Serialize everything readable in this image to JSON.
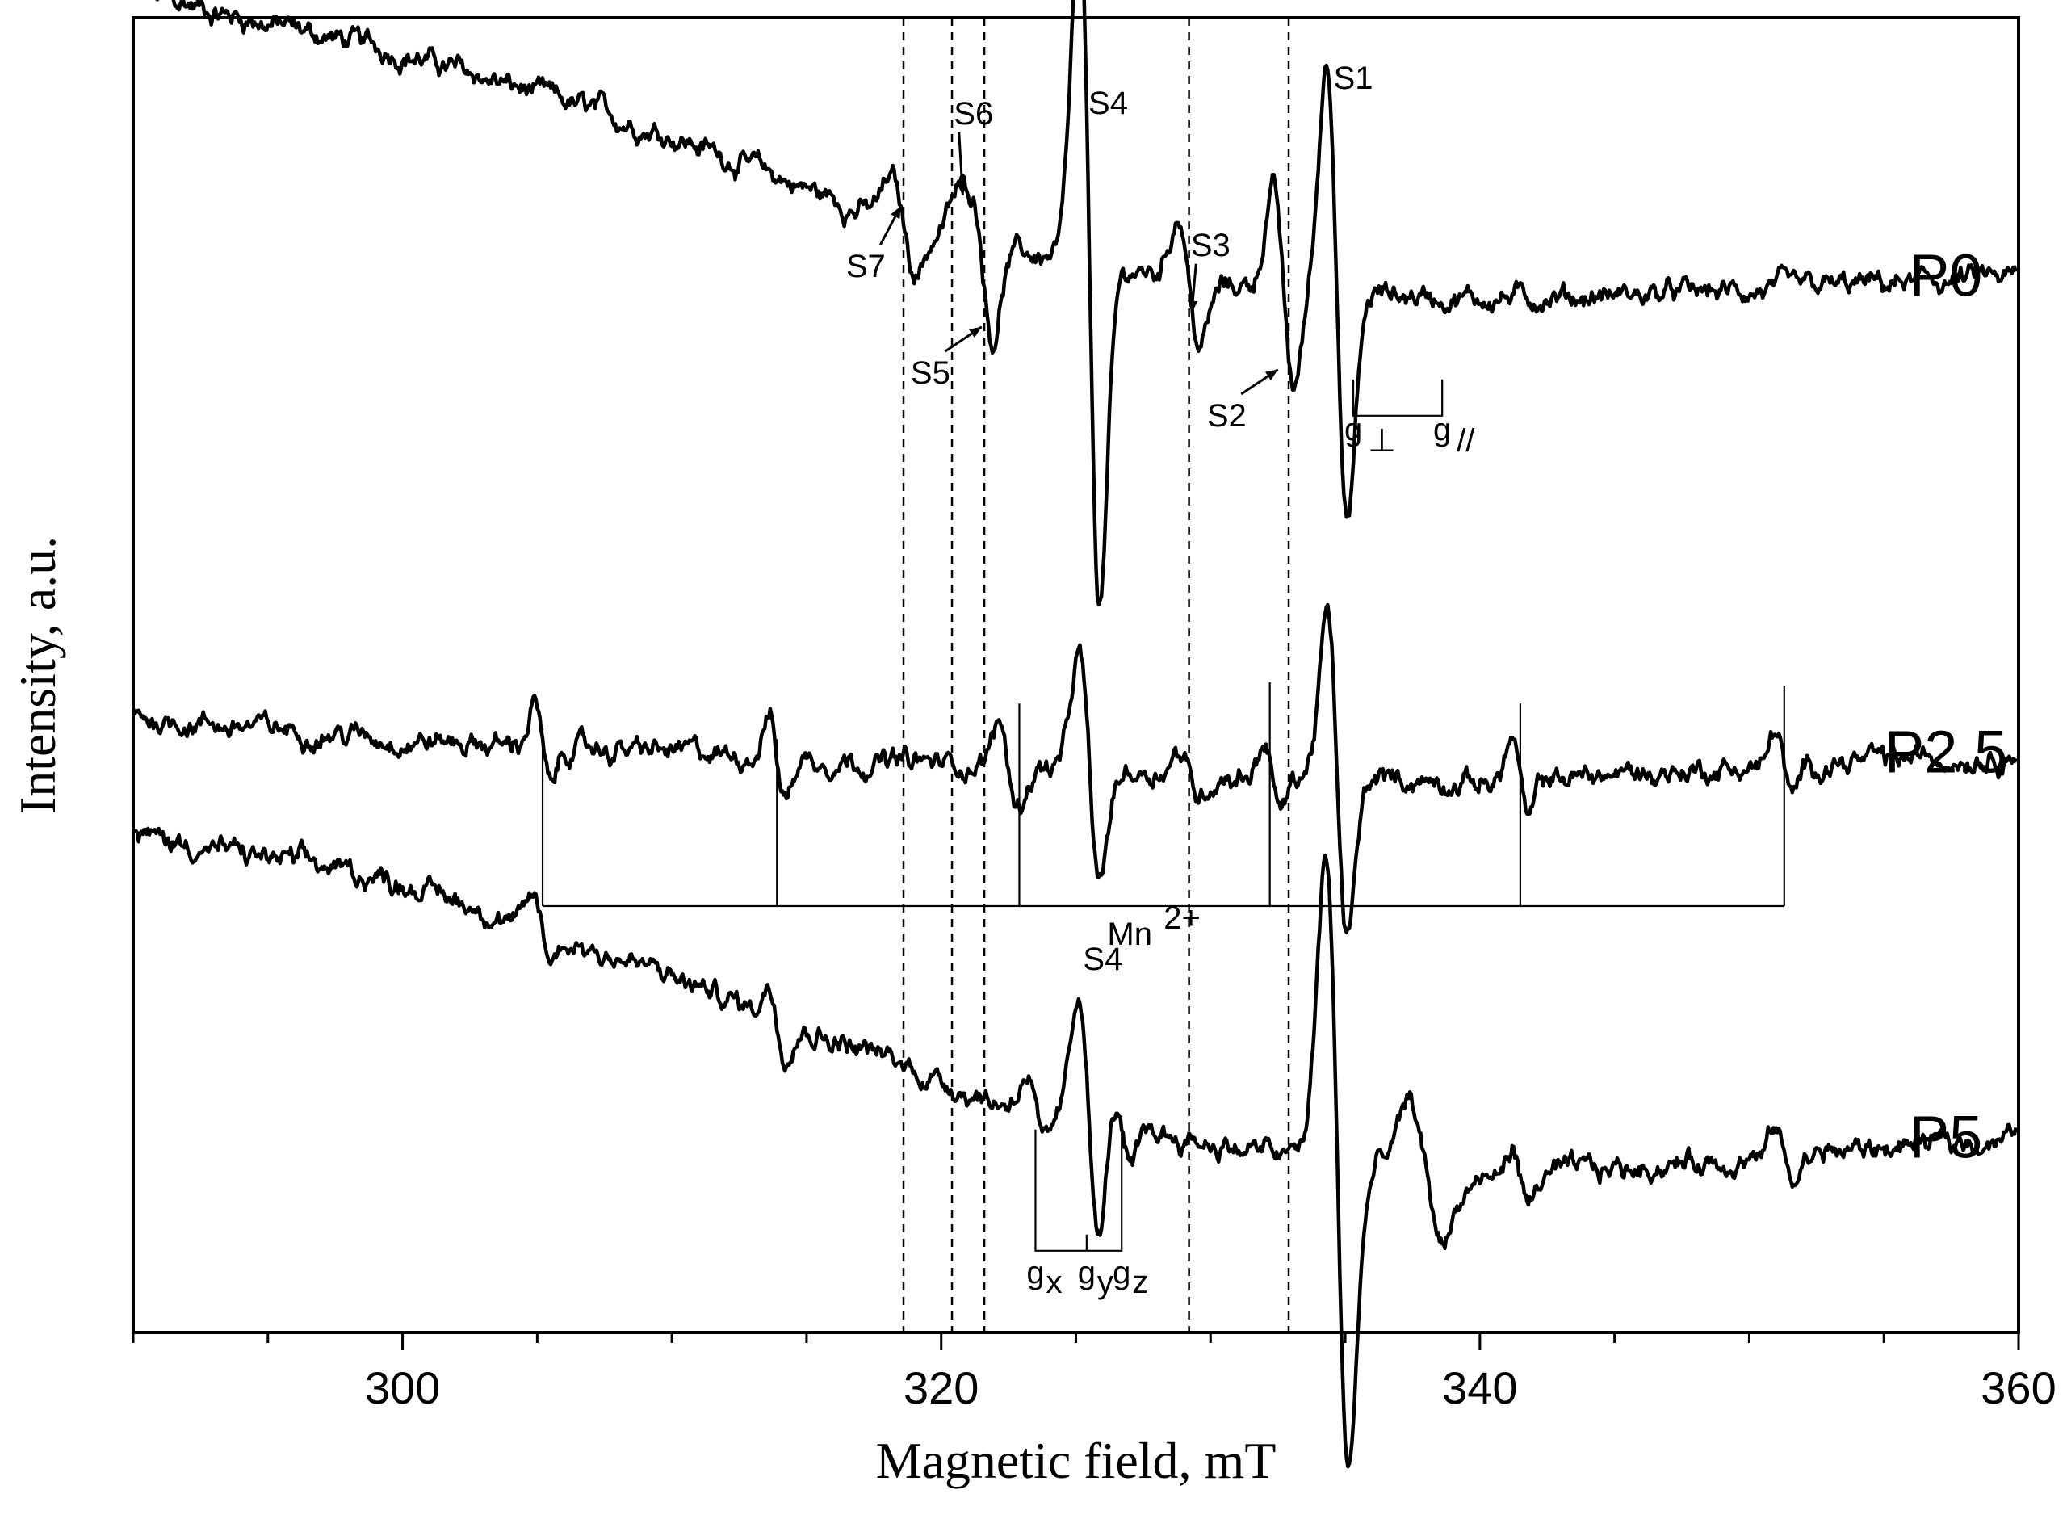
{
  "chart_data": {
    "type": "line",
    "xlabel": "Magnetic field, mT",
    "ylabel": "Intensity, a.u.",
    "xlim": [
      290,
      360
    ],
    "xticks": [
      300,
      320,
      340,
      360
    ],
    "yticks": [],
    "grid": false,
    "series": [
      {
        "name": "P0",
        "label": "P0",
        "offset": 2.0,
        "baseline": [
          [
            290,
            1.22
          ],
          [
            300,
            1.05
          ],
          [
            310,
            0.82
          ],
          [
            318,
            0.58
          ],
          [
            322,
            0.5
          ],
          [
            330,
            0.4
          ],
          [
            340,
            0.36
          ],
          [
            350,
            0.38
          ],
          [
            360,
            0.42
          ]
        ],
        "features": [
          {
            "name": "S7",
            "x": 318.6,
            "amp": 0.12,
            "width": 0.45
          },
          {
            "name": "S6",
            "x": 321.0,
            "amp": 0.12,
            "width": 0.4
          },
          {
            "name": "S5",
            "x": 321.6,
            "amp": 0.22,
            "width": 0.35
          },
          {
            "name": "S4",
            "x": 325.5,
            "amp": 0.95,
            "width": 0.38
          },
          {
            "name": "S3",
            "x": 329.2,
            "amp": 0.18,
            "width": 0.4
          },
          {
            "name": "S2",
            "x": 332.7,
            "amp": 0.28,
            "width": 0.38
          },
          {
            "name": "S1",
            "x": 334.7,
            "amp": 0.65,
            "width": 0.38
          }
        ]
      },
      {
        "name": "P2.5",
        "label": "P2.5",
        "offset": 1.0,
        "baseline": [
          [
            290,
            0.18
          ],
          [
            300,
            0.12
          ],
          [
            305,
            0.1
          ],
          [
            320,
            0.05
          ],
          [
            330,
            0.02
          ],
          [
            340,
            0.0
          ],
          [
            350,
            0.04
          ],
          [
            360,
            0.08
          ]
        ],
        "features": [
          {
            "name": "Mn1",
            "x": 305.2,
            "amp": 0.12,
            "width": 0.3
          },
          {
            "name": "Mn2",
            "x": 313.9,
            "amp": 0.12,
            "width": 0.3
          },
          {
            "name": "S5",
            "x": 322.5,
            "amp": 0.12,
            "width": 0.35
          },
          {
            "name": "S4",
            "x": 325.5,
            "amp": 0.32,
            "width": 0.38
          },
          {
            "name": "S3",
            "x": 329.2,
            "amp": 0.06,
            "width": 0.4
          },
          {
            "name": "Mn3",
            "x": 332.3,
            "amp": 0.1,
            "width": 0.3
          },
          {
            "name": "S1",
            "x": 334.7,
            "amp": 0.45,
            "width": 0.38
          },
          {
            "name": "Mn4",
            "x": 341.5,
            "amp": 0.12,
            "width": 0.3
          },
          {
            "name": "Mn5",
            "x": 351.3,
            "amp": 0.1,
            "width": 0.3
          }
        ]
      },
      {
        "name": "P5",
        "label": "P5",
        "offset": 0.0,
        "baseline": [
          [
            290,
            0.85
          ],
          [
            300,
            0.72
          ],
          [
            310,
            0.45
          ],
          [
            318,
            0.22
          ],
          [
            322,
            0.1
          ],
          [
            330,
            -0.02
          ],
          [
            340,
            -0.12
          ],
          [
            350,
            -0.06
          ],
          [
            360,
            0.0
          ]
        ],
        "features": [
          {
            "name": "Mn1",
            "x": 305.2,
            "amp": 0.08,
            "width": 0.3
          },
          {
            "name": "Mn2",
            "x": 313.9,
            "amp": 0.08,
            "width": 0.3
          },
          {
            "name": "gx",
            "x": 323.5,
            "amp": 0.1,
            "width": 0.35
          },
          {
            "name": "S4",
            "x": 325.5,
            "amp": 0.35,
            "width": 0.38
          },
          {
            "name": "gz",
            "x": 326.7,
            "amp": 0.12,
            "width": 0.35
          },
          {
            "name": "S1",
            "x": 334.7,
            "amp": 0.85,
            "width": 0.42
          },
          {
            "name": "S1b",
            "x": 338.0,
            "amp": 0.18,
            "width": 0.6
          },
          {
            "name": "Mn4",
            "x": 341.5,
            "amp": 0.08,
            "width": 0.3
          },
          {
            "name": "Mn5",
            "x": 351.3,
            "amp": 0.08,
            "width": 0.3
          }
        ]
      }
    ],
    "dashed_lines_x": [
      318.6,
      320.4,
      321.6,
      329.2,
      332.9
    ],
    "annotations": [
      {
        "text": "S7",
        "x": 317.2,
        "y": 2.42,
        "arrow_to": [
          318.5,
          2.62
        ]
      },
      {
        "text": "S6",
        "x": 321.2,
        "y": 2.85,
        "arrow_to": [
          320.8,
          2.65
        ]
      },
      {
        "text": "S5",
        "x": 319.6,
        "y": 2.12,
        "arrow_to": [
          321.5,
          2.28
        ]
      },
      {
        "text": "S4",
        "x": 326.2,
        "y": 2.88
      },
      {
        "text": "S3",
        "x": 330.0,
        "y": 2.48,
        "arrow_to": [
          329.3,
          2.32
        ]
      },
      {
        "text": "S2",
        "x": 330.6,
        "y": 2.0,
        "arrow_to": [
          332.5,
          2.16
        ]
      },
      {
        "text": "S1",
        "x": 335.3,
        "y": 2.95
      },
      {
        "text": "S4",
        "x": 326.0,
        "y": 0.47
      }
    ],
    "bracket_P0": {
      "x1": 335.3,
      "x2": 338.6,
      "y": 2.03,
      "labels": [
        "g",
        "g"
      ],
      "subs": [
        "⊥",
        "//"
      ]
    },
    "bracket_P5": {
      "xs": [
        323.5,
        325.4,
        326.7
      ],
      "y": -0.32,
      "labels": [
        "g",
        "g",
        "g"
      ],
      "subs": [
        "x",
        "y",
        "z"
      ]
    },
    "mn_bracket": {
      "xs": [
        305.2,
        313.9,
        322.9,
        332.2,
        341.5,
        351.3
      ],
      "y": 0.65,
      "label": "Mn",
      "sup": "2+"
    }
  }
}
